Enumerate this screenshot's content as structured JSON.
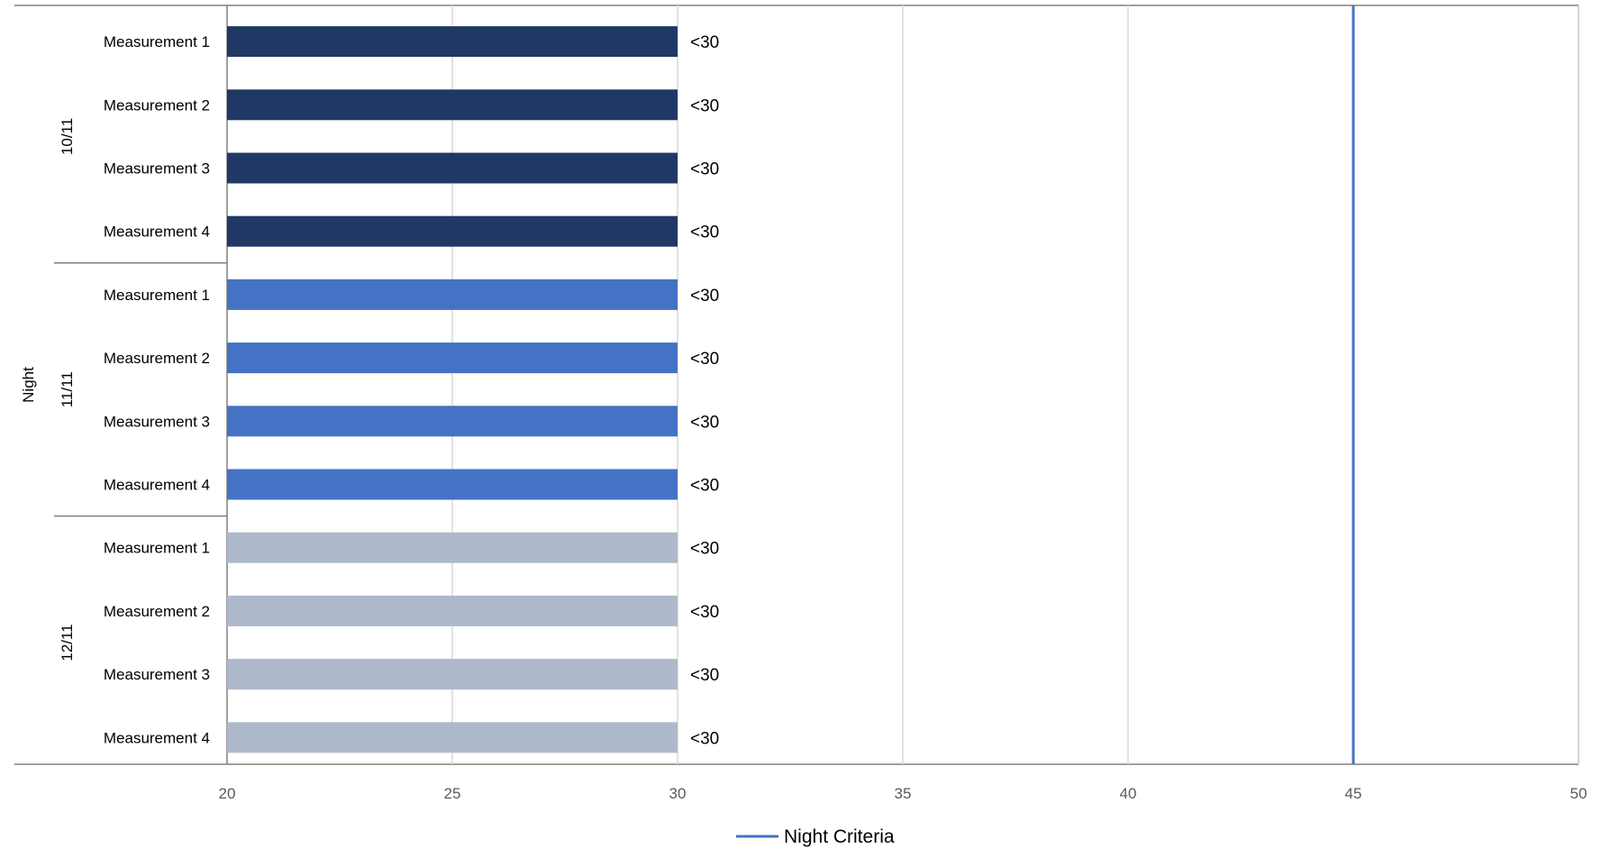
{
  "chart_data": {
    "type": "bar",
    "orientation": "horizontal",
    "outer_group": "Night",
    "groups": [
      {
        "name": "10/11",
        "color": "#203864",
        "categories": [
          "Measurement 1",
          "Measurement 2",
          "Measurement 3",
          "Measurement 4"
        ],
        "values": [
          30,
          30,
          30,
          30
        ],
        "labels": [
          "<30",
          "<30",
          "<30",
          "<30"
        ]
      },
      {
        "name": "11/11",
        "color": "#4472C4",
        "categories": [
          "Measurement 1",
          "Measurement 2",
          "Measurement 3",
          "Measurement 4"
        ],
        "values": [
          30,
          30,
          30,
          30
        ],
        "labels": [
          "<30",
          "<30",
          "<30",
          "<30"
        ]
      },
      {
        "name": "12/11",
        "color": "#ADB9CA",
        "categories": [
          "Measurement 1",
          "Measurement 2",
          "Measurement 3",
          "Measurement 4"
        ],
        "values": [
          30,
          30,
          30,
          30
        ],
        "labels": [
          "<30",
          "<30",
          "<30",
          "<30"
        ]
      }
    ],
    "xlim": [
      20,
      50
    ],
    "xticks": [
      20,
      25,
      30,
      35,
      40,
      45,
      50
    ],
    "reference_line": {
      "name": "Night Criteria",
      "value": 45,
      "color": "#4472C4"
    },
    "grid": true,
    "legend": {
      "position": "bottom",
      "entries": [
        "Night Criteria"
      ]
    }
  }
}
